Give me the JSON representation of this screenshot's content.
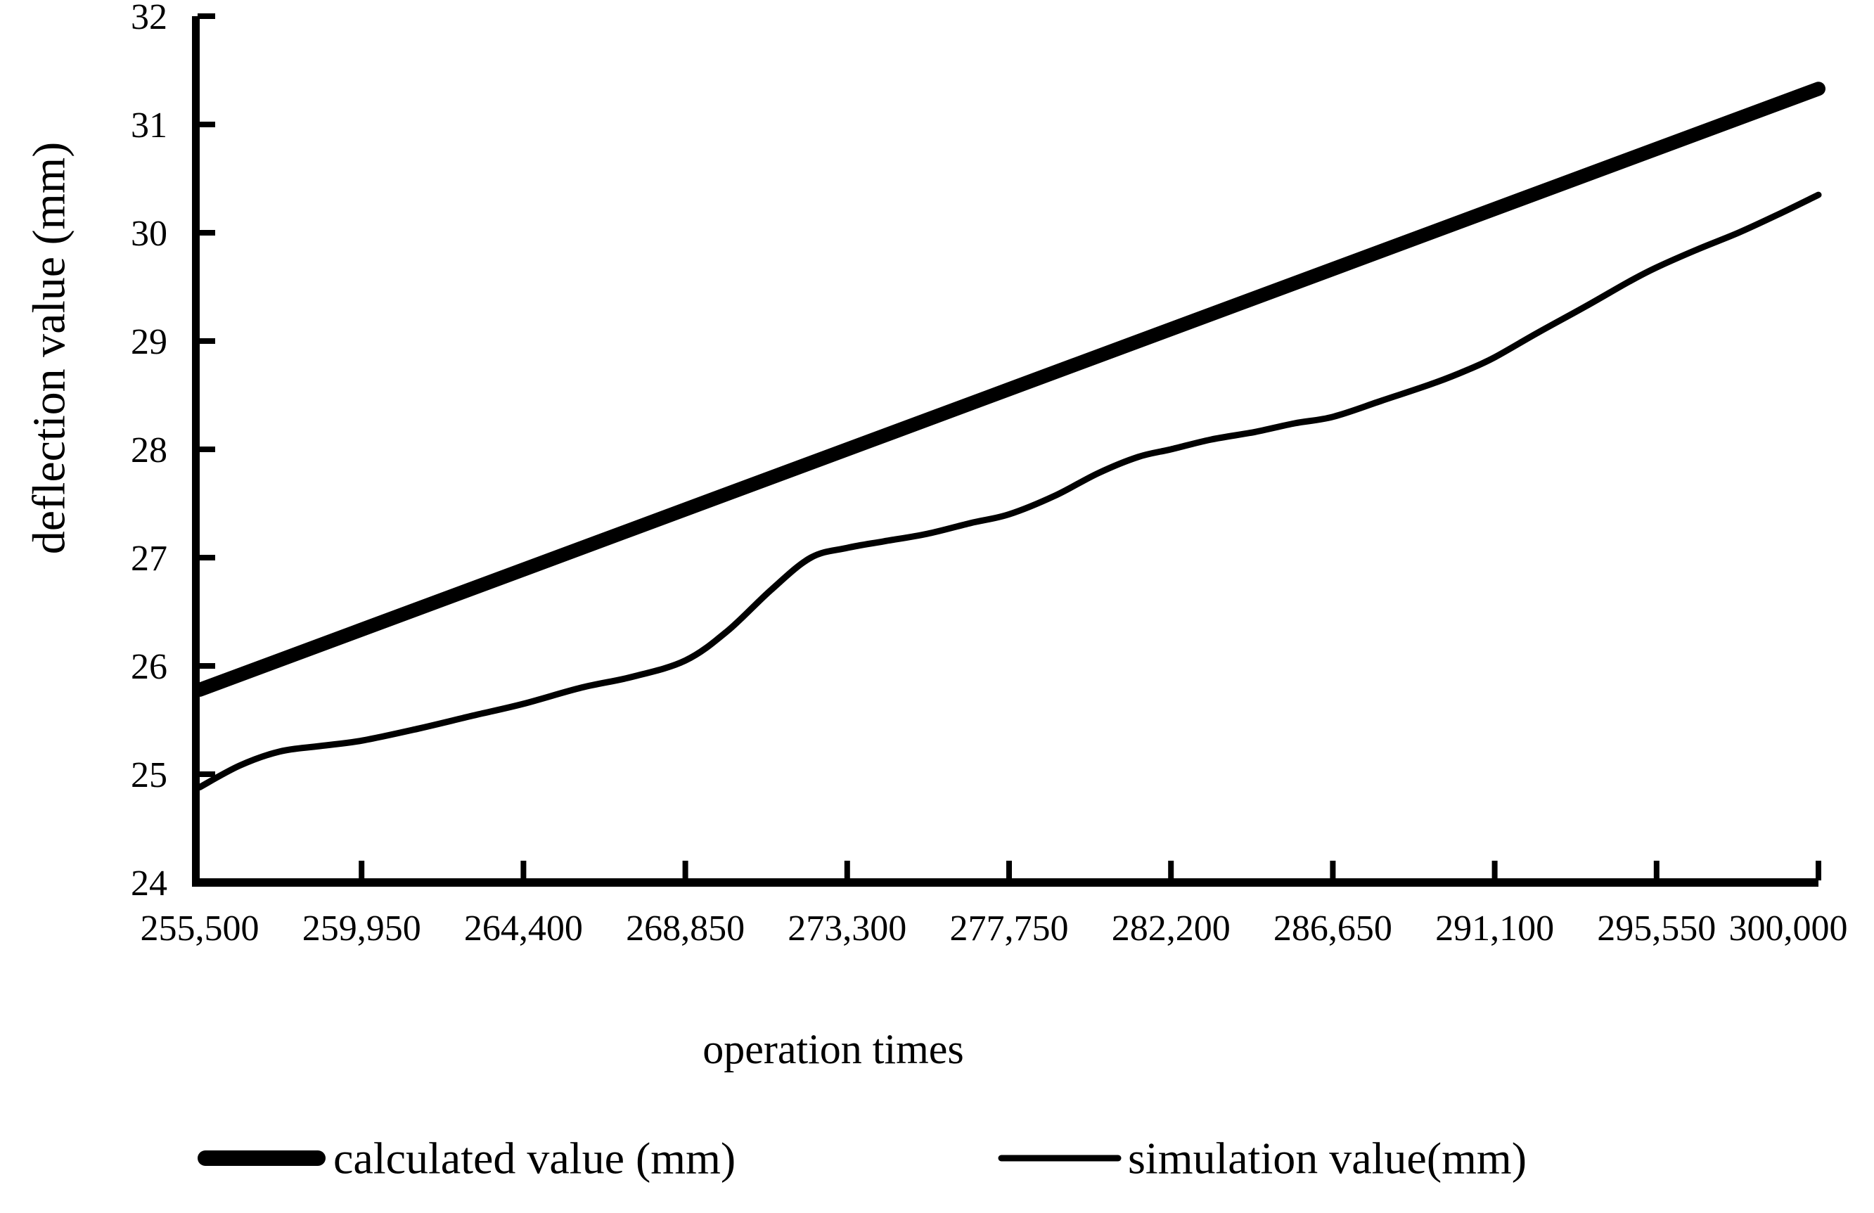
{
  "figure": {
    "background": "#ffffff",
    "line_color": "#000000"
  },
  "chart_data": {
    "type": "line",
    "title": "",
    "xlabel": "operation times",
    "ylabel": "deflection value (mm)",
    "xlim": [
      255500,
      300000
    ],
    "ylim": [
      24,
      32
    ],
    "grid": false,
    "legend_position": "bottom",
    "x_ticks": {
      "values": [
        255500,
        259950,
        264400,
        268850,
        273300,
        277750,
        282200,
        286650,
        291100,
        295550,
        300000
      ],
      "labels": [
        "255,500",
        "259,950",
        "264,400",
        "268,850",
        "273,300",
        "277,750",
        "282,200",
        "286,650",
        "291,100",
        "295,550",
        "300,000"
      ]
    },
    "y_ticks": {
      "values": [
        24,
        25,
        26,
        27,
        28,
        29,
        30,
        31,
        32
      ],
      "labels": [
        "24",
        "25",
        "26",
        "27",
        "28",
        "29",
        "30",
        "31",
        "32"
      ]
    },
    "series": [
      {
        "name": "calculated value (mm)",
        "style": "thick",
        "points": [
          [
            255500,
            25.78
          ],
          [
            300000,
            31.33
          ]
        ]
      },
      {
        "name": "simulation value(mm)",
        "style": "thin",
        "points": [
          [
            255500,
            24.88
          ],
          [
            256600,
            25.08
          ],
          [
            257700,
            25.21
          ],
          [
            258800,
            25.26
          ],
          [
            259950,
            25.31
          ],
          [
            261500,
            25.42
          ],
          [
            263000,
            25.54
          ],
          [
            264400,
            25.65
          ],
          [
            266000,
            25.8
          ],
          [
            267400,
            25.9
          ],
          [
            268850,
            26.05
          ],
          [
            270000,
            26.32
          ],
          [
            271200,
            26.7
          ],
          [
            272300,
            27.0
          ],
          [
            273300,
            27.09
          ],
          [
            274300,
            27.15
          ],
          [
            275500,
            27.22
          ],
          [
            276700,
            27.32
          ],
          [
            277750,
            27.4
          ],
          [
            279000,
            27.57
          ],
          [
            280200,
            27.78
          ],
          [
            281300,
            27.93
          ],
          [
            282200,
            28.0
          ],
          [
            283300,
            28.09
          ],
          [
            284500,
            28.16
          ],
          [
            285600,
            28.24
          ],
          [
            286650,
            28.3
          ],
          [
            288000,
            28.45
          ],
          [
            289500,
            28.62
          ],
          [
            290400,
            28.74
          ],
          [
            291100,
            28.85
          ],
          [
            292300,
            29.08
          ],
          [
            293600,
            29.32
          ],
          [
            294800,
            29.55
          ],
          [
            295550,
            29.68
          ],
          [
            296700,
            29.85
          ],
          [
            297800,
            30.0
          ],
          [
            298900,
            30.17
          ],
          [
            300000,
            30.35
          ]
        ]
      }
    ]
  }
}
